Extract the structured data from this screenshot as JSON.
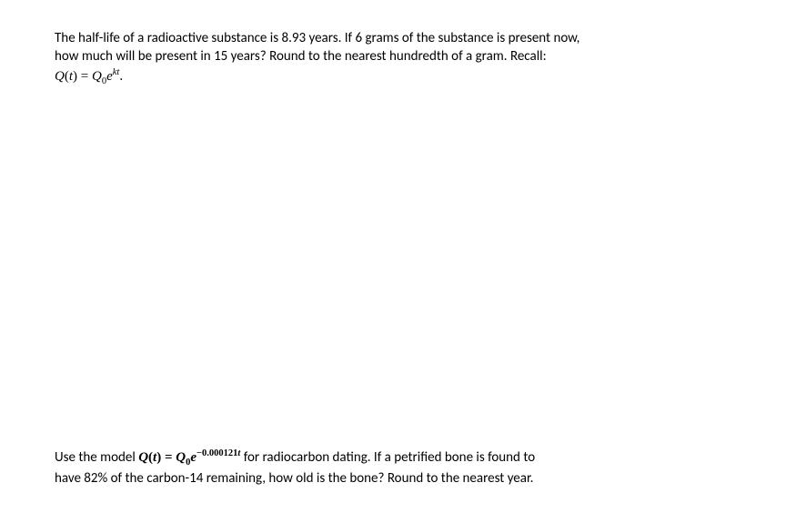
{
  "problems": {
    "p1": {
      "line1": "The half-life of a radioactive substance is 8.93 years.  If 6 grams of the substance is present now,",
      "line2": "how much will be present in 15 years?  Round to the nearest hundredth of a gram.  Recall:",
      "formula_Q": "Q",
      "formula_t": "t",
      "formula_eq": " = ",
      "formula_Q0": "Q",
      "formula_sub0": "0",
      "formula_e": "e",
      "formula_exp": "kt",
      "formula_end": "."
    },
    "p2": {
      "prefix": "Use the model ",
      "formula_Q": "Q",
      "formula_t": "t",
      "formula_eq": " = ",
      "formula_Q0": "Q",
      "formula_sub0": "0",
      "formula_e": "e",
      "formula_exp_coef": "−0.000121",
      "formula_exp_t": "t",
      "mid": " for radiocarbon dating.  If a petrified bone is found to",
      "line2": "have 82% of the carbon-14 remaining, how old is the bone?  Round to the nearest year."
    }
  },
  "style": {
    "font_size_body": 15,
    "font_size_sup": 11,
    "text_color": "#000000",
    "background_color": "#ffffff"
  }
}
